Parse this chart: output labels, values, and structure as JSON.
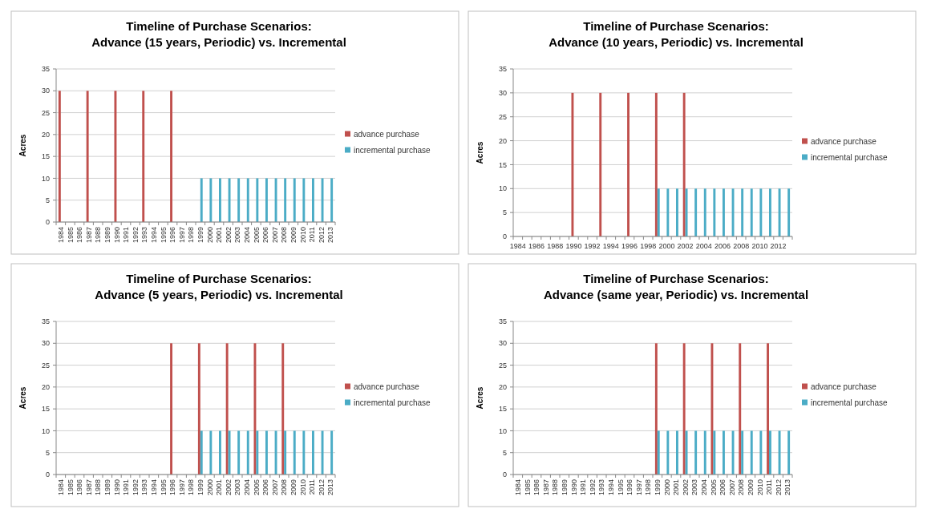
{
  "chart_data": [
    {
      "type": "bar",
      "title": "Timeline of Purchase Scenarios:\nAdvance (15 years, Periodic) vs. Incremental",
      "ylabel": "Acres",
      "categories": [
        "1984",
        "1985",
        "1986",
        "1987",
        "1988",
        "1989",
        "1990",
        "1991",
        "1992",
        "1993",
        "1994",
        "1995",
        "1996",
        "1997",
        "1998",
        "1999",
        "2000",
        "2001",
        "2002",
        "2003",
        "2004",
        "2005",
        "2006",
        "2007",
        "2008",
        "2009",
        "2010",
        "2011",
        "2012",
        "2013"
      ],
      "series": [
        {
          "name": "advance purchase",
          "color": "#c0504d",
          "values": [
            30,
            0,
            0,
            30,
            0,
            0,
            30,
            0,
            0,
            30,
            0,
            0,
            30,
            0,
            0,
            0,
            0,
            0,
            0,
            0,
            0,
            0,
            0,
            0,
            0,
            0,
            0,
            0,
            0,
            0
          ]
        },
        {
          "name": "incremental purchase",
          "color": "#4bacc6",
          "values": [
            0,
            0,
            0,
            0,
            0,
            0,
            0,
            0,
            0,
            0,
            0,
            0,
            0,
            0,
            0,
            10,
            10,
            10,
            10,
            10,
            10,
            10,
            10,
            10,
            10,
            10,
            10,
            10,
            10,
            10
          ]
        }
      ],
      "ylim": [
        0,
        35
      ],
      "yticks": [
        0,
        5,
        10,
        15,
        20,
        25,
        30,
        35
      ],
      "grid": "y",
      "legend": "right"
    },
    {
      "type": "bar",
      "title": "Timeline of Purchase Scenarios:\nAdvance (10 years, Periodic) vs. Incremental",
      "ylabel": "Acres",
      "categories": [
        "1984",
        null,
        "1986",
        null,
        "1988",
        null,
        "1990",
        null,
        "1992",
        null,
        "1994",
        null,
        "1996",
        null,
        "1998",
        null,
        "2000",
        null,
        "2002",
        null,
        "2004",
        null,
        "2006",
        null,
        "2008",
        null,
        "2010",
        null,
        "2012",
        null
      ],
      "series": [
        {
          "name": "advance purchase",
          "color": "#c0504d",
          "values": [
            0,
            0,
            0,
            0,
            0,
            0,
            30,
            0,
            0,
            30,
            0,
            0,
            30,
            0,
            0,
            30,
            0,
            0,
            30,
            0,
            0,
            0,
            0,
            0,
            0,
            0,
            0,
            0,
            0,
            0
          ]
        },
        {
          "name": "incremental purchase",
          "color": "#4bacc6",
          "values": [
            0,
            0,
            0,
            0,
            0,
            0,
            0,
            0,
            0,
            0,
            0,
            0,
            0,
            0,
            0,
            10,
            10,
            10,
            10,
            10,
            10,
            10,
            10,
            10,
            10,
            10,
            10,
            10,
            10,
            10
          ]
        }
      ],
      "ylim": [
        0,
        35
      ],
      "yticks": [
        0,
        5,
        10,
        15,
        20,
        25,
        30,
        35
      ],
      "grid": "y",
      "legend": "right"
    },
    {
      "type": "bar",
      "title": "Timeline of Purchase Scenarios:\nAdvance (5 years, Periodic) vs. Incremental",
      "ylabel": "Acres",
      "categories": [
        "1984",
        "1985",
        "1986",
        "1987",
        "1988",
        "1989",
        "1990",
        "1991",
        "1992",
        "1993",
        "1994",
        "1995",
        "1996",
        "1997",
        "1998",
        "1999",
        "2000",
        "2001",
        "2002",
        "2003",
        "2004",
        "2005",
        "2006",
        "2007",
        "2008",
        "2009",
        "2010",
        "2011",
        "2012",
        "2013"
      ],
      "series": [
        {
          "name": "advance purchase",
          "color": "#c0504d",
          "values": [
            0,
            0,
            0,
            0,
            0,
            0,
            0,
            0,
            0,
            0,
            0,
            0,
            30,
            0,
            0,
            30,
            0,
            0,
            30,
            0,
            0,
            30,
            0,
            0,
            30,
            0,
            0,
            0,
            0,
            0
          ]
        },
        {
          "name": "incremental purchase",
          "color": "#4bacc6",
          "values": [
            0,
            0,
            0,
            0,
            0,
            0,
            0,
            0,
            0,
            0,
            0,
            0,
            0,
            0,
            0,
            10,
            10,
            10,
            10,
            10,
            10,
            10,
            10,
            10,
            10,
            10,
            10,
            10,
            10,
            10
          ]
        }
      ],
      "ylim": [
        0,
        35
      ],
      "yticks": [
        0,
        5,
        10,
        15,
        20,
        25,
        30,
        35
      ],
      "grid": "y",
      "legend": "right"
    },
    {
      "type": "bar",
      "title": "Timeline of Purchase Scenarios:\nAdvance (same year, Periodic) vs. Incremental",
      "ylabel": "Acres",
      "categories": [
        "1984",
        "1985",
        "1986",
        "1987",
        "1988",
        "1989",
        "1990",
        "1991",
        "1992",
        "1993",
        "1994",
        "1995",
        "1996",
        "1997",
        "1998",
        "1999",
        "2000",
        "2001",
        "2002",
        "2003",
        "2004",
        "2005",
        "2006",
        "2007",
        "2008",
        "2009",
        "2010",
        "2011",
        "2012",
        "2013"
      ],
      "series": [
        {
          "name": "advance purchase",
          "color": "#c0504d",
          "values": [
            0,
            0,
            0,
            0,
            0,
            0,
            0,
            0,
            0,
            0,
            0,
            0,
            0,
            0,
            0,
            30,
            0,
            0,
            30,
            0,
            0,
            30,
            0,
            0,
            30,
            0,
            0,
            30,
            0,
            0
          ]
        },
        {
          "name": "incremental purchase",
          "color": "#4bacc6",
          "values": [
            0,
            0,
            0,
            0,
            0,
            0,
            0,
            0,
            0,
            0,
            0,
            0,
            0,
            0,
            0,
            10,
            10,
            10,
            10,
            10,
            10,
            10,
            10,
            10,
            10,
            10,
            10,
            10,
            10,
            10
          ]
        }
      ],
      "ylim": [
        0,
        35
      ],
      "yticks": [
        0,
        5,
        10,
        15,
        20,
        25,
        30,
        35
      ],
      "grid": "y",
      "legend": "right"
    }
  ]
}
